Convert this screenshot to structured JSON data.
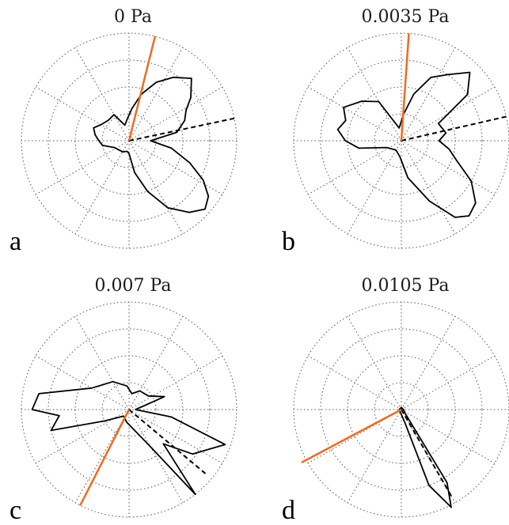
{
  "colors": {
    "orange_direction": "#f26a1b",
    "rose_outline": "#000000",
    "grid": "#555555"
  },
  "chart_data": [
    {
      "type": "polar",
      "panel": "a",
      "title": "0 Pa",
      "grid": true,
      "ring_count": 4,
      "spoke_step_deg": 30,
      "rmax": 1,
      "orange_line": {
        "angle_deg": 76,
        "length": 1.0
      },
      "dashed_line": {
        "angle_deg": 12,
        "length": 1.0
      },
      "rose": [
        [
          0,
          0.2
        ],
        [
          10,
          0.45
        ],
        [
          20,
          0.55
        ],
        [
          28,
          0.6
        ],
        [
          35,
          0.7
        ],
        [
          45,
          0.82
        ],
        [
          55,
          0.72
        ],
        [
          65,
          0.6
        ],
        [
          75,
          0.45
        ],
        [
          85,
          0.3
        ],
        [
          95,
          0.2
        ],
        [
          105,
          0.15
        ],
        [
          120,
          0.28
        ],
        [
          135,
          0.27
        ],
        [
          150,
          0.3
        ],
        [
          160,
          0.35
        ],
        [
          170,
          0.32
        ],
        [
          180,
          0.28
        ],
        [
          190,
          0.25
        ],
        [
          205,
          0.15
        ],
        [
          240,
          0.12
        ],
        [
          260,
          0.1
        ],
        [
          270,
          0.12
        ],
        [
          280,
          0.3
        ],
        [
          290,
          0.5
        ],
        [
          300,
          0.72
        ],
        [
          310,
          0.87
        ],
        [
          318,
          0.95
        ],
        [
          325,
          0.9
        ],
        [
          332,
          0.78
        ],
        [
          340,
          0.6
        ],
        [
          350,
          0.4
        ],
        [
          360,
          0.2
        ]
      ]
    },
    {
      "type": "polar",
      "panel": "b",
      "title": "0.0035 Pa",
      "grid": true,
      "ring_count": 4,
      "spoke_step_deg": 30,
      "rmax": 1,
      "orange_line": {
        "angle_deg": 86,
        "length": 1.0
      },
      "dashed_line": {
        "angle_deg": 13,
        "length": 1.05
      },
      "rose": [
        [
          0,
          0.35
        ],
        [
          10,
          0.42
        ],
        [
          25,
          0.38
        ],
        [
          35,
          0.75
        ],
        [
          45,
          0.9
        ],
        [
          55,
          0.75
        ],
        [
          65,
          0.65
        ],
        [
          75,
          0.45
        ],
        [
          85,
          0.25
        ],
        [
          100,
          0.12
        ],
        [
          120,
          0.42
        ],
        [
          135,
          0.52
        ],
        [
          150,
          0.62
        ],
        [
          160,
          0.55
        ],
        [
          170,
          0.6
        ],
        [
          180,
          0.52
        ],
        [
          190,
          0.4
        ],
        [
          205,
          0.15
        ],
        [
          240,
          0.1
        ],
        [
          265,
          0.15
        ],
        [
          280,
          0.35
        ],
        [
          295,
          0.62
        ],
        [
          305,
          0.87
        ],
        [
          312,
          0.94
        ],
        [
          320,
          0.9
        ],
        [
          330,
          0.75
        ],
        [
          340,
          0.55
        ],
        [
          350,
          0.45
        ],
        [
          360,
          0.35
        ]
      ]
    },
    {
      "type": "polar",
      "panel": "c",
      "title": "0.007 Pa",
      "grid": true,
      "ring_count": 4,
      "spoke_step_deg": 30,
      "rmax": 1,
      "orange_line": {
        "angle_deg": 243,
        "length": 1.0
      },
      "dashed_line": {
        "angle_deg": 320,
        "length": 0.95
      },
      "rose": [
        [
          0,
          0.06
        ],
        [
          20,
          0.35
        ],
        [
          35,
          0.22
        ],
        [
          60,
          0.2
        ],
        [
          80,
          0.15
        ],
        [
          95,
          0.22
        ],
        [
          120,
          0.3
        ],
        [
          150,
          0.4
        ],
        [
          170,
          0.85
        ],
        [
          180,
          0.9
        ],
        [
          185,
          0.65
        ],
        [
          195,
          0.75
        ],
        [
          205,
          0.25
        ],
        [
          230,
          0.08
        ],
        [
          260,
          0.12
        ],
        [
          300,
          0.4
        ],
        [
          308,
          1.0
        ],
        [
          315,
          0.45
        ],
        [
          325,
          0.72
        ],
        [
          340,
          0.95
        ],
        [
          350,
          0.4
        ],
        [
          360,
          0.06
        ]
      ]
    },
    {
      "type": "polar",
      "panel": "d",
      "title": "0.0105 Pa",
      "grid": true,
      "ring_count": 4,
      "spoke_step_deg": 30,
      "rmax": 1,
      "orange_line": {
        "angle_deg": 208,
        "length": 1.05
      },
      "dashed_line": {
        "angle_deg": 300,
        "length": 0.95
      },
      "rose": [
        [
          0,
          0.02
        ],
        [
          90,
          0.02
        ],
        [
          180,
          0.02
        ],
        [
          285,
          0.12
        ],
        [
          290,
          0.75
        ],
        [
          297,
          1.02
        ],
        [
          302,
          0.8
        ],
        [
          315,
          0.05
        ],
        [
          360,
          0.02
        ]
      ]
    }
  ]
}
